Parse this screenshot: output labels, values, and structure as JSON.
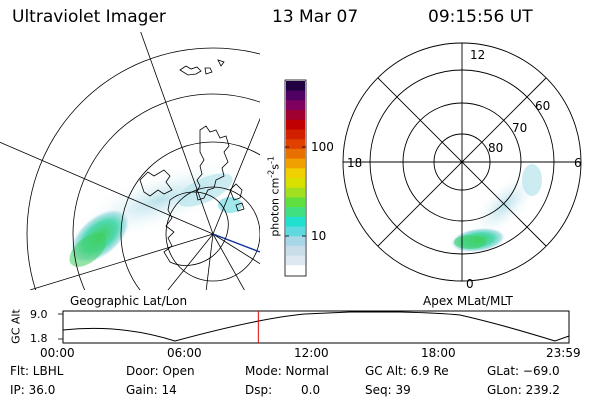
{
  "header": {
    "instrument": "Ultraviolet Imager",
    "date": "13 Mar 07",
    "time": "09:15:56 UT"
  },
  "colorbar": {
    "unit_label": "photon cm",
    "unit_exp1": "-2",
    "unit_mid": "s",
    "unit_exp2": "-1",
    "tick_high": "100",
    "tick_low": "10",
    "colors": [
      "#ffffff",
      "#dde8f0",
      "#c8dde8",
      "#a8d8e8",
      "#60d8e0",
      "#20e0d0",
      "#40e080",
      "#60e040",
      "#a0e020",
      "#d8e000",
      "#f0d000",
      "#f0a000",
      "#e87000",
      "#e04000",
      "#d02000",
      "#c00000",
      "#a00030",
      "#800060",
      "#500060",
      "#200040"
    ]
  },
  "left_panel": {
    "label": "Geographic Lat/Lon"
  },
  "right_panel": {
    "label": "Apex MLat/MLT",
    "mlt_12": "12",
    "mlt_18": "18",
    "mlt_6": "6",
    "mlt_0": "0",
    "lat_60": "60",
    "lat_70": "70",
    "lat_80": "80"
  },
  "altitude_plot": {
    "ylabel": "GC Alt",
    "yticks": [
      "9.0",
      "1.8"
    ],
    "xticks": [
      "00:00",
      "06:00",
      "12:00",
      "18:00",
      "23:59"
    ],
    "current_time_fraction": 0.386
  },
  "footer": {
    "flt": "Flt: LBHL",
    "ip": "IP: 36.0",
    "door": "Door: Open",
    "gain": "Gain: 14",
    "mode": "Mode: Normal",
    "dsp_label": "Dsp:",
    "dsp_value": "0.0",
    "gc_alt": "GC Alt: 6.9 Re",
    "seq": "Seq: 39",
    "glat": "GLat: −69.0",
    "glon": "GLon: 239.2"
  }
}
